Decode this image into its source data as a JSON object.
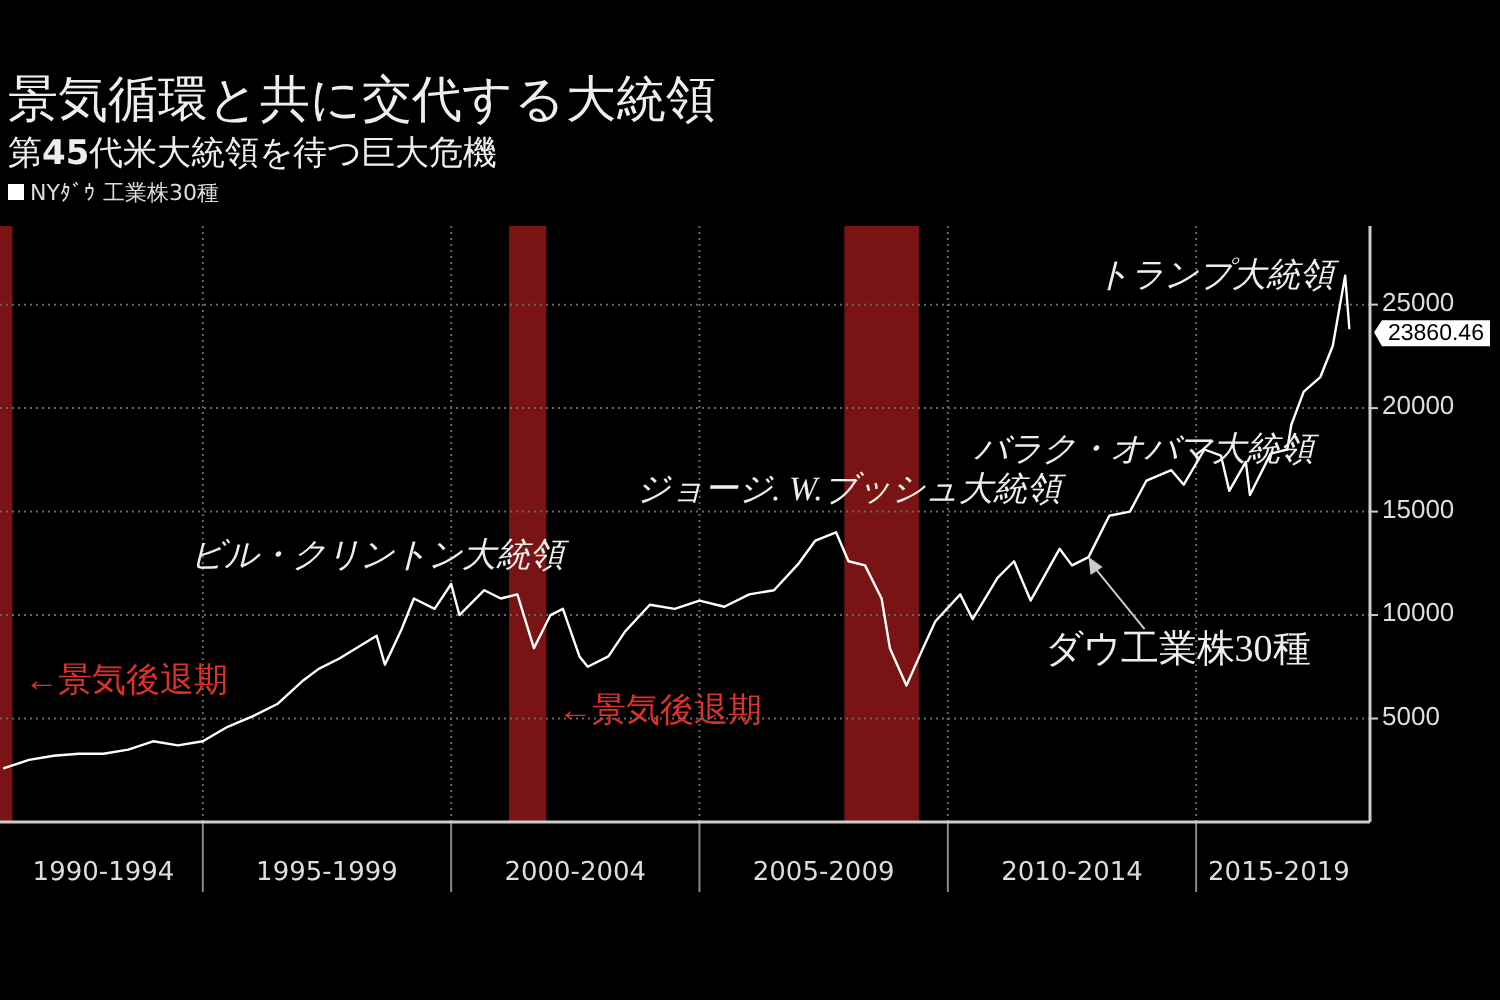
{
  "chart_data": {
    "type": "line",
    "title": "景気循環と共に交代する大統領",
    "subtitle": "第**45**代米大統領を待つ巨大危機",
    "series": [
      {
        "name": "NYﾀﾞｳ 工業株30種",
        "color": "#ffffff",
        "x": [
          "1991-01",
          "1991-07",
          "1992-01",
          "1992-07",
          "1993-01",
          "1993-07",
          "1994-01",
          "1994-07",
          "1995-01",
          "1995-07",
          "1996-01",
          "1996-07",
          "1997-01",
          "1997-05",
          "1997-10",
          "1998-07",
          "1998-09",
          "1999-01",
          "1999-04",
          "1999-09",
          "2000-01",
          "2000-03",
          "2000-09",
          "2001-01",
          "2001-05",
          "2001-09",
          "2002-01",
          "2002-04",
          "2002-08",
          "2002-10",
          "2003-03",
          "2003-07",
          "2004-01",
          "2004-07",
          "2005-01",
          "2005-07",
          "2006-01",
          "2006-07",
          "2007-01",
          "2007-05",
          "2007-10",
          "2008-01",
          "2008-05",
          "2008-09",
          "2008-11",
          "2009-03",
          "2009-07",
          "2009-10",
          "2010-04",
          "2010-07",
          "2011-01",
          "2011-05",
          "2011-09",
          "2012-04",
          "2012-07",
          "2012-11",
          "2013-04",
          "2013-09",
          "2014-01",
          "2014-07",
          "2014-10",
          "2015-03",
          "2015-07",
          "2015-09",
          "2016-01",
          "2016-02",
          "2016-07",
          "2016-11",
          "2016-12",
          "2017-03",
          "2017-07",
          "2017-10",
          "2018-01",
          "2018-02"
        ],
        "values": [
          2600,
          3000,
          3200,
          3300,
          3300,
          3500,
          3900,
          3700,
          3900,
          4600,
          5100,
          5700,
          6800,
          7400,
          7900,
          9000,
          7600,
          9300,
          10800,
          10300,
          11500,
          10000,
          11200,
          10800,
          11000,
          8400,
          10000,
          10300,
          8000,
          7500,
          8000,
          9200,
          10500,
          10300,
          10700,
          10400,
          11000,
          11200,
          12500,
          13600,
          14000,
          12600,
          12400,
          10800,
          8400,
          6600,
          8400,
          9700,
          11000,
          9800,
          11800,
          12600,
          10700,
          13200,
          12400,
          12800,
          14800,
          15000,
          16500,
          17000,
          16300,
          18000,
          17700,
          16000,
          17400,
          15800,
          17800,
          18000,
          19200,
          20800,
          21500,
          23000,
          26400,
          23860.46
        ]
      }
    ],
    "xlim": [
      "1990-12",
      "2018-07"
    ],
    "ylim": [
      0,
      28800
    ],
    "xticks": [
      {
        "value": "1993-01",
        "label": "1990-1994"
      },
      {
        "value": "1995-01",
        "label": null
      },
      {
        "value": "1997-07",
        "label": "1995-1999"
      },
      {
        "value": "2000-01",
        "label": null
      },
      {
        "value": "2002-07",
        "label": "2000-2004"
      },
      {
        "value": "2005-01",
        "label": null
      },
      {
        "value": "2007-07",
        "label": "2005-2009"
      },
      {
        "value": "2010-01",
        "label": null
      },
      {
        "value": "2012-07",
        "label": "2010-2014"
      },
      {
        "value": "2015-01",
        "label": null
      },
      {
        "value": "2016-09",
        "label": "2015-2019"
      }
    ],
    "yticks": [
      5000,
      10000,
      15000,
      20000,
      25000
    ],
    "grid": true,
    "legend": "top left",
    "marker": "none",
    "line_style": "solid",
    "bands": [
      {
        "axis": "x",
        "from": "1990-08",
        "to": "1991-03",
        "label": "←景気後退期",
        "color": "#7a1414"
      },
      {
        "axis": "x",
        "from": "2001-03",
        "to": "2001-12",
        "label": "←景気後退期",
        "color": "#7a1414"
      },
      {
        "axis": "x",
        "from": "2007-12",
        "to": "2009-06",
        "color": "#7a1414"
      }
    ],
    "annotations": [
      "ビル・クリントン大統領",
      "ジョージ. W.ブッシュ大統領",
      "バラク・オバマ大統領",
      "トランプ大統領",
      {
        "text": "ダウ工業株30種",
        "x": "2012-11",
        "y": 12800
      },
      {
        "text": "23860.46",
        "x": "2018-02",
        "y": 23860.46
      }
    ]
  }
}
